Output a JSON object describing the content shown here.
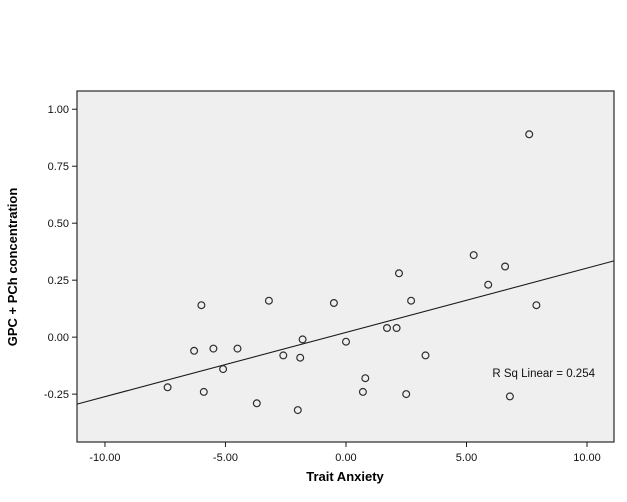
{
  "chart_data": {
    "type": "scatter",
    "title": "",
    "xlabel": "Trait Anxiety",
    "ylabel": "GPC + PCh concentration",
    "x_ticks": [
      -10,
      -5,
      0,
      5,
      10
    ],
    "x_tick_labels": [
      "-10.00",
      "-5.00",
      "0.00",
      "5.00",
      "10.00"
    ],
    "y_ticks": [
      1.0,
      0.75,
      0.5,
      0.25,
      0.0,
      -0.25
    ],
    "y_tick_labels": [
      "1.00",
      "0.75",
      "0.50",
      "0.25",
      "0.00",
      "-0.25"
    ],
    "xlim": [
      -11.16,
      11.12
    ],
    "ylim": [
      -0.46,
      1.08
    ],
    "grid": false,
    "legend": "none",
    "marker": "open-circle",
    "points": [
      [
        -7.4,
        -0.22
      ],
      [
        -6.3,
        -0.06
      ],
      [
        -6.0,
        0.14
      ],
      [
        -5.9,
        -0.24
      ],
      [
        -5.5,
        -0.05
      ],
      [
        -5.1,
        -0.14
      ],
      [
        -4.5,
        -0.05
      ],
      [
        -3.7,
        -0.29
      ],
      [
        -3.2,
        0.16
      ],
      [
        -2.6,
        -0.08
      ],
      [
        -2.0,
        -0.32
      ],
      [
        -1.9,
        -0.09
      ],
      [
        -1.8,
        -0.01
      ],
      [
        -0.5,
        0.15
      ],
      [
        0.0,
        -0.02
      ],
      [
        0.7,
        -0.24
      ],
      [
        0.8,
        -0.18
      ],
      [
        1.7,
        0.04
      ],
      [
        2.1,
        0.04
      ],
      [
        2.2,
        0.28
      ],
      [
        2.5,
        -0.25
      ],
      [
        2.7,
        0.16
      ],
      [
        3.3,
        -0.08
      ],
      [
        5.3,
        0.36
      ],
      [
        5.9,
        0.23
      ],
      [
        6.6,
        0.31
      ],
      [
        6.8,
        -0.26
      ],
      [
        7.6,
        0.89
      ],
      [
        7.9,
        0.14
      ]
    ],
    "trendline": {
      "slope": 0.0282,
      "intercept": 0.021
    },
    "annotation": "R Sq Linear = 0.254",
    "r_squared": 0.254
  },
  "colors": {
    "page_bg": "#ffffff",
    "plot_bg": "#efefef",
    "plot_border": "#2a2a2a",
    "axis": "#1a1a1a",
    "tick_text": "#111111",
    "point_stroke": "#2e2e2e",
    "trendline": "#1a1a1a"
  }
}
